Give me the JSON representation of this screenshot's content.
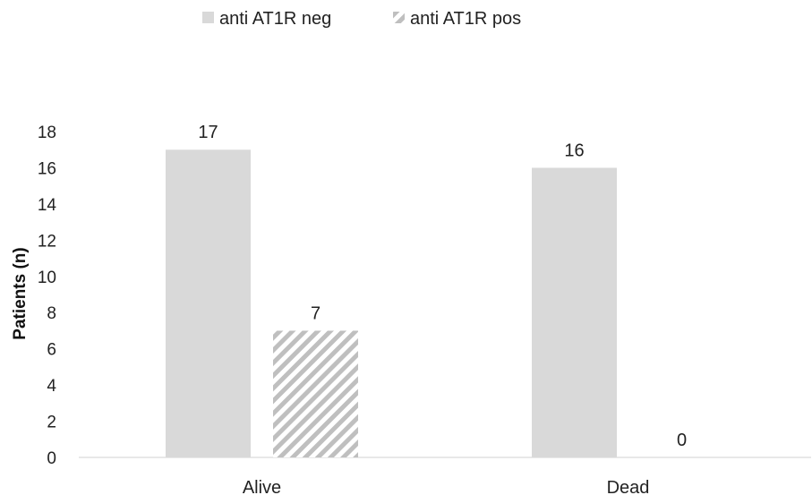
{
  "chart_data": {
    "type": "bar",
    "title": "",
    "xlabel": "",
    "ylabel": "Patients (n)",
    "categories": [
      "Alive",
      "Dead"
    ],
    "series": [
      {
        "name": "anti AT1R neg",
        "values": [
          17,
          16
        ],
        "color": "#d9d9d9",
        "pattern": "solid"
      },
      {
        "name": "anti AT1R pos",
        "values": [
          7,
          0
        ],
        "color": "#bfbfbf",
        "pattern": "diagonal-hatch"
      }
    ],
    "ylim": [
      0,
      18
    ],
    "yticks": [
      "0",
      "2",
      "4",
      "6",
      "8",
      "10",
      "12",
      "14",
      "16",
      "18"
    ],
    "grid": false,
    "legend": "top-center",
    "data_labels": true
  }
}
